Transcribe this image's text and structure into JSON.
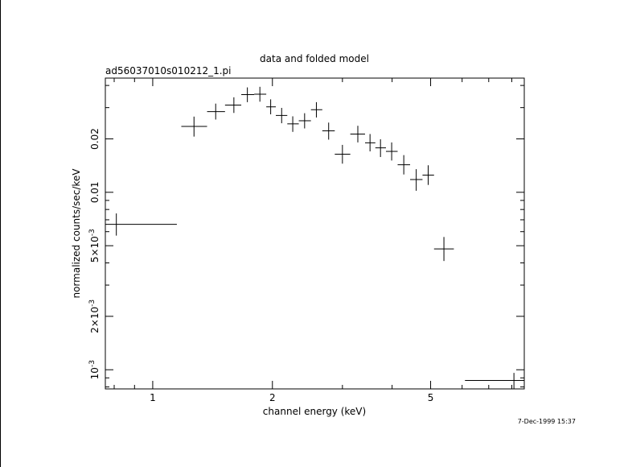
{
  "chart_data": {
    "type": "scatter",
    "title": "data and folded model",
    "subtitle": "ad56037010s010212_1.pi",
    "xlabel": "channel energy (keV)",
    "ylabel": "normalized counts/sec/keV",
    "timestamp": "7-Dec-1999 15:37",
    "x_scale": "log",
    "y_scale": "log",
    "xlim": [
      0.76,
      8.6
    ],
    "ylim": [
      0.00078,
      0.044
    ],
    "x_ticks": [
      {
        "value": 1,
        "label": "1"
      },
      {
        "value": 2,
        "label": "2"
      },
      {
        "value": 5,
        "label": "5"
      }
    ],
    "y_ticks": [
      {
        "value": 0.001,
        "label": "10",
        "sup": "-3"
      },
      {
        "value": 0.002,
        "label": "2×10",
        "sup": "-3"
      },
      {
        "value": 0.005,
        "label": "5×10",
        "sup": "-3"
      },
      {
        "value": 0.01,
        "label": "0.01",
        "sup": ""
      },
      {
        "value": 0.02,
        "label": "0.02",
        "sup": ""
      }
    ],
    "series": [
      {
        "points": [
          {
            "x": 0.81,
            "xlo": 0.745,
            "xhi": 1.15,
            "y": 0.0066,
            "ylo": 0.0057,
            "yhi": 0.0076
          },
          {
            "x": 1.27,
            "xlo": 1.18,
            "xhi": 1.37,
            "y": 0.0235,
            "ylo": 0.0206,
            "yhi": 0.0267
          },
          {
            "x": 1.44,
            "xlo": 1.37,
            "xhi": 1.52,
            "y": 0.0285,
            "ylo": 0.0257,
            "yhi": 0.0316
          },
          {
            "x": 1.6,
            "xlo": 1.52,
            "xhi": 1.67,
            "y": 0.031,
            "ylo": 0.028,
            "yhi": 0.0343
          },
          {
            "x": 1.73,
            "xlo": 1.67,
            "xhi": 1.8,
            "y": 0.0355,
            "ylo": 0.0322,
            "yhi": 0.039
          },
          {
            "x": 1.86,
            "xlo": 1.8,
            "xhi": 1.93,
            "y": 0.0357,
            "ylo": 0.0324,
            "yhi": 0.0393
          },
          {
            "x": 1.98,
            "xlo": 1.93,
            "xhi": 2.04,
            "y": 0.0303,
            "ylo": 0.0275,
            "yhi": 0.0334
          },
          {
            "x": 2.11,
            "xlo": 2.04,
            "xhi": 2.18,
            "y": 0.0271,
            "ylo": 0.0245,
            "yhi": 0.0299
          },
          {
            "x": 2.25,
            "xlo": 2.18,
            "xhi": 2.33,
            "y": 0.0243,
            "ylo": 0.0219,
            "yhi": 0.0268
          },
          {
            "x": 2.41,
            "xlo": 2.33,
            "xhi": 2.5,
            "y": 0.0253,
            "ylo": 0.0229,
            "yhi": 0.0279
          },
          {
            "x": 2.58,
            "xlo": 2.5,
            "xhi": 2.67,
            "y": 0.0292,
            "ylo": 0.0264,
            "yhi": 0.0322
          },
          {
            "x": 2.77,
            "xlo": 2.67,
            "xhi": 2.87,
            "y": 0.0222,
            "ylo": 0.0198,
            "yhi": 0.0247
          },
          {
            "x": 3.0,
            "xlo": 2.87,
            "xhi": 3.14,
            "y": 0.0164,
            "ylo": 0.0145,
            "yhi": 0.0185
          },
          {
            "x": 3.28,
            "xlo": 3.14,
            "xhi": 3.42,
            "y": 0.0213,
            "ylo": 0.0191,
            "yhi": 0.0237
          },
          {
            "x": 3.52,
            "xlo": 3.42,
            "xhi": 3.63,
            "y": 0.019,
            "ylo": 0.017,
            "yhi": 0.0213
          },
          {
            "x": 3.74,
            "xlo": 3.63,
            "xhi": 3.86,
            "y": 0.0178,
            "ylo": 0.0158,
            "yhi": 0.0199
          },
          {
            "x": 3.99,
            "xlo": 3.86,
            "xhi": 4.13,
            "y": 0.017,
            "ylo": 0.0151,
            "yhi": 0.0191
          },
          {
            "x": 4.28,
            "xlo": 4.13,
            "xhi": 4.44,
            "y": 0.0143,
            "ylo": 0.0126,
            "yhi": 0.0162
          },
          {
            "x": 4.6,
            "xlo": 4.44,
            "xhi": 4.77,
            "y": 0.0118,
            "ylo": 0.0102,
            "yhi": 0.0135
          },
          {
            "x": 4.93,
            "xlo": 4.77,
            "xhi": 5.1,
            "y": 0.0125,
            "ylo": 0.011,
            "yhi": 0.0142
          },
          {
            "x": 5.4,
            "xlo": 5.1,
            "xhi": 5.72,
            "y": 0.0048,
            "ylo": 0.0041,
            "yhi": 0.0056
          },
          {
            "x": 8.1,
            "xlo": 6.1,
            "xhi": 8.6,
            "y": 0.00087,
            "ylo": 0.00078,
            "yhi": 0.00096
          }
        ]
      }
    ]
  }
}
